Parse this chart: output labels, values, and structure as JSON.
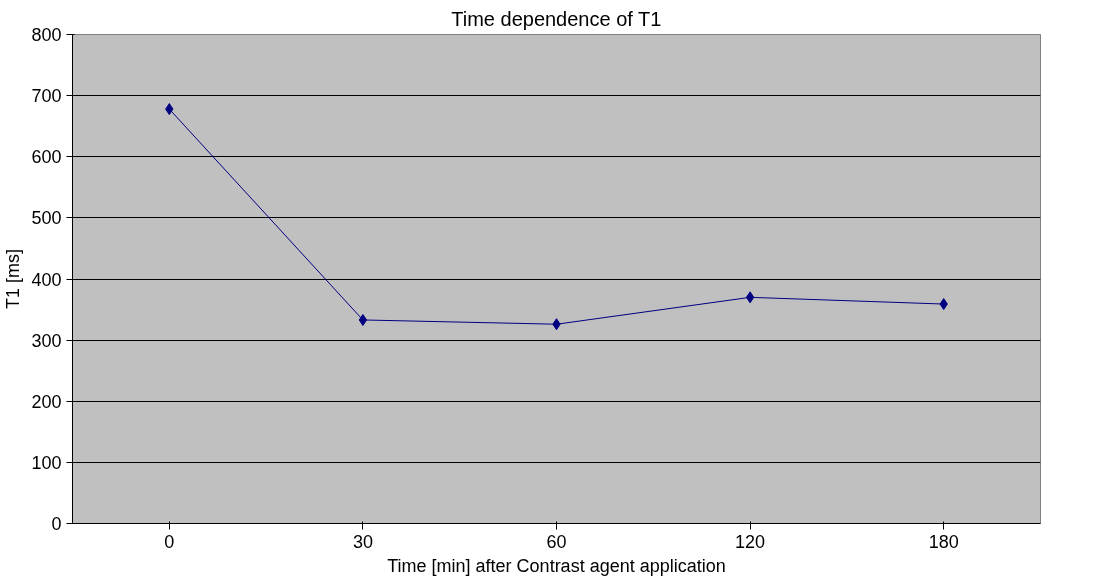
{
  "chart_data": {
    "type": "line",
    "title": "Time dependence of T1",
    "xlabel": "Time [min] after Contrast agent application",
    "ylabel": "T1 [ms]",
    "categories": [
      "0",
      "30",
      "60",
      "120",
      "180"
    ],
    "series": [
      {
        "color": "#000080",
        "values": [
          678,
          333,
          326,
          370,
          359
        ]
      }
    ],
    "ylim": [
      0,
      800
    ],
    "yticks": [
      0,
      100,
      200,
      300,
      400,
      500,
      600,
      700,
      800
    ],
    "grid": "y",
    "marker": "diamond",
    "line_style": "solid"
  }
}
